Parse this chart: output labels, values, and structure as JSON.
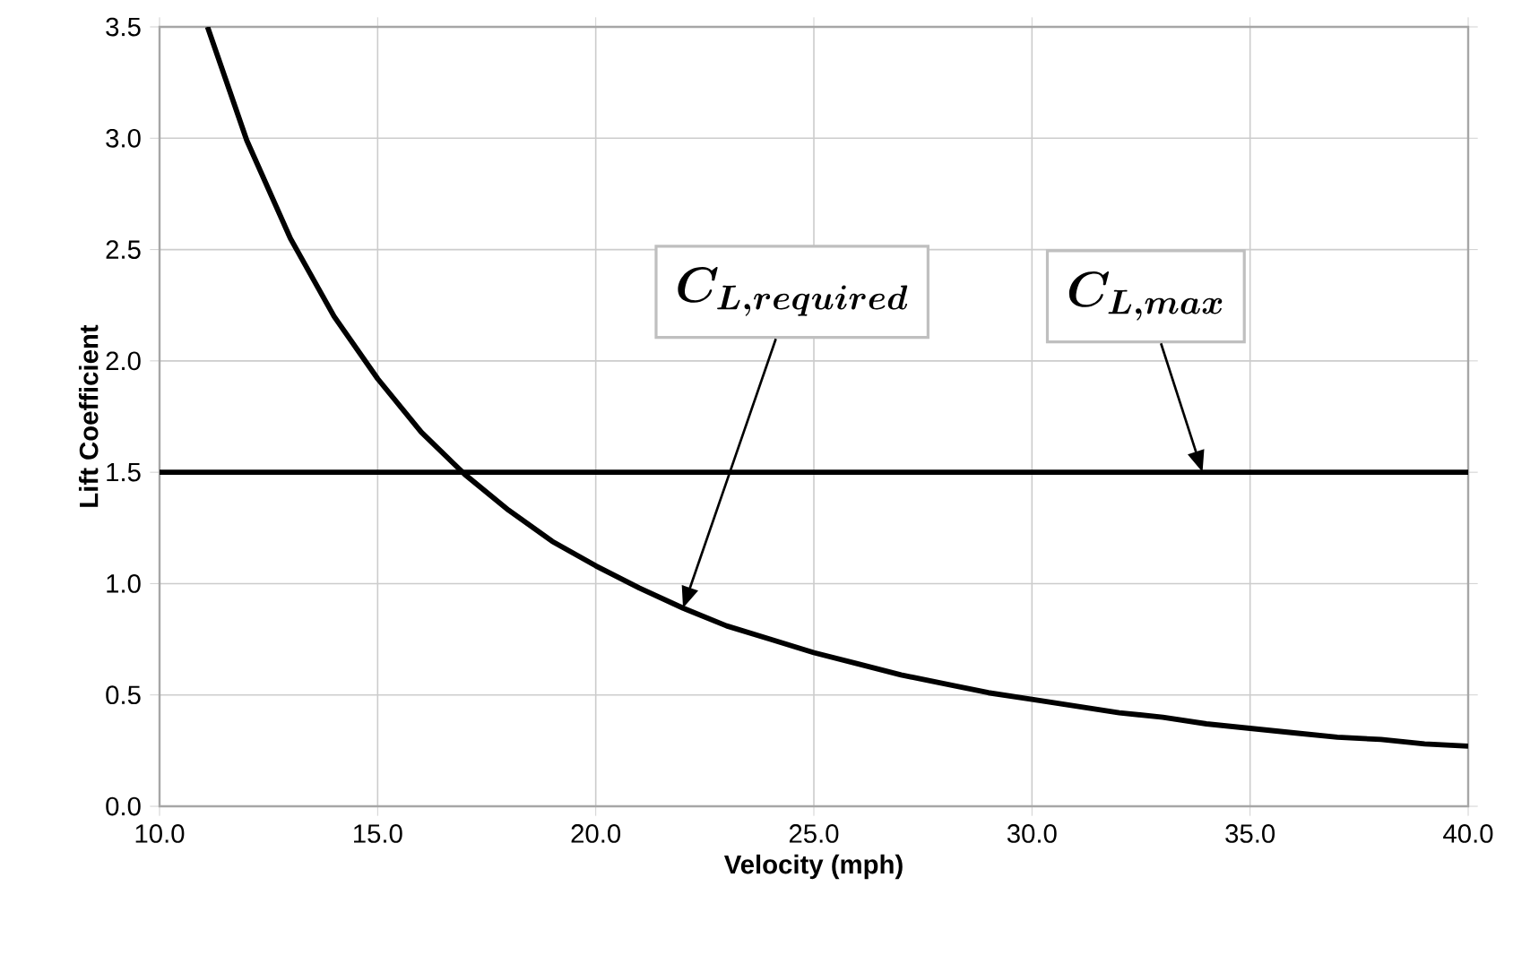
{
  "chart_data": {
    "type": "line",
    "xlabel": "Velocity (mph)",
    "ylabel": "Lift Coefficient",
    "xlim": [
      10,
      40
    ],
    "ylim": [
      0,
      3.5
    ],
    "xticks": [
      {
        "value": 10,
        "label": "10.0"
      },
      {
        "value": 15,
        "label": "15.0"
      },
      {
        "value": 20,
        "label": "20.0"
      },
      {
        "value": 25,
        "label": "25.0"
      },
      {
        "value": 30,
        "label": "30.0"
      },
      {
        "value": 35,
        "label": "35.0"
      },
      {
        "value": 40,
        "label": "40.0"
      }
    ],
    "yticks": [
      {
        "value": 0,
        "label": "0.0"
      },
      {
        "value": 0.5,
        "label": "0.5"
      },
      {
        "value": 1,
        "label": "1.0"
      },
      {
        "value": 1.5,
        "label": "1.5"
      },
      {
        "value": 2,
        "label": "2.0"
      },
      {
        "value": 2.5,
        "label": "2.5"
      },
      {
        "value": 3,
        "label": "3.0"
      },
      {
        "value": 3.5,
        "label": "3.5"
      }
    ],
    "grid": true,
    "line_style": "solid",
    "marker": "none",
    "series": [
      {
        "color": "#000000",
        "x": [
          11.1,
          12,
          13,
          14,
          15,
          16,
          17,
          18,
          19,
          20,
          21,
          22,
          23,
          24,
          25,
          26,
          27,
          28,
          29,
          30,
          31,
          32,
          33,
          34,
          35,
          36,
          37,
          38,
          39,
          40
        ],
        "values": [
          3.5,
          2.99,
          2.55,
          2.2,
          1.92,
          1.68,
          1.49,
          1.33,
          1.19,
          1.08,
          0.98,
          0.89,
          0.81,
          0.75,
          0.69,
          0.64,
          0.59,
          0.55,
          0.51,
          0.48,
          0.45,
          0.42,
          0.4,
          0.37,
          0.35,
          0.33,
          0.31,
          0.3,
          0.28,
          0.27
        ]
      }
    ],
    "ref_lines": [
      {
        "axis": "y",
        "value": 1.5,
        "color": "#000000",
        "line_style": "solid"
      }
    ],
    "annotations": [
      "\\bm{C_{L,required}}",
      "\\bm{C_{L,max}}"
    ]
  }
}
